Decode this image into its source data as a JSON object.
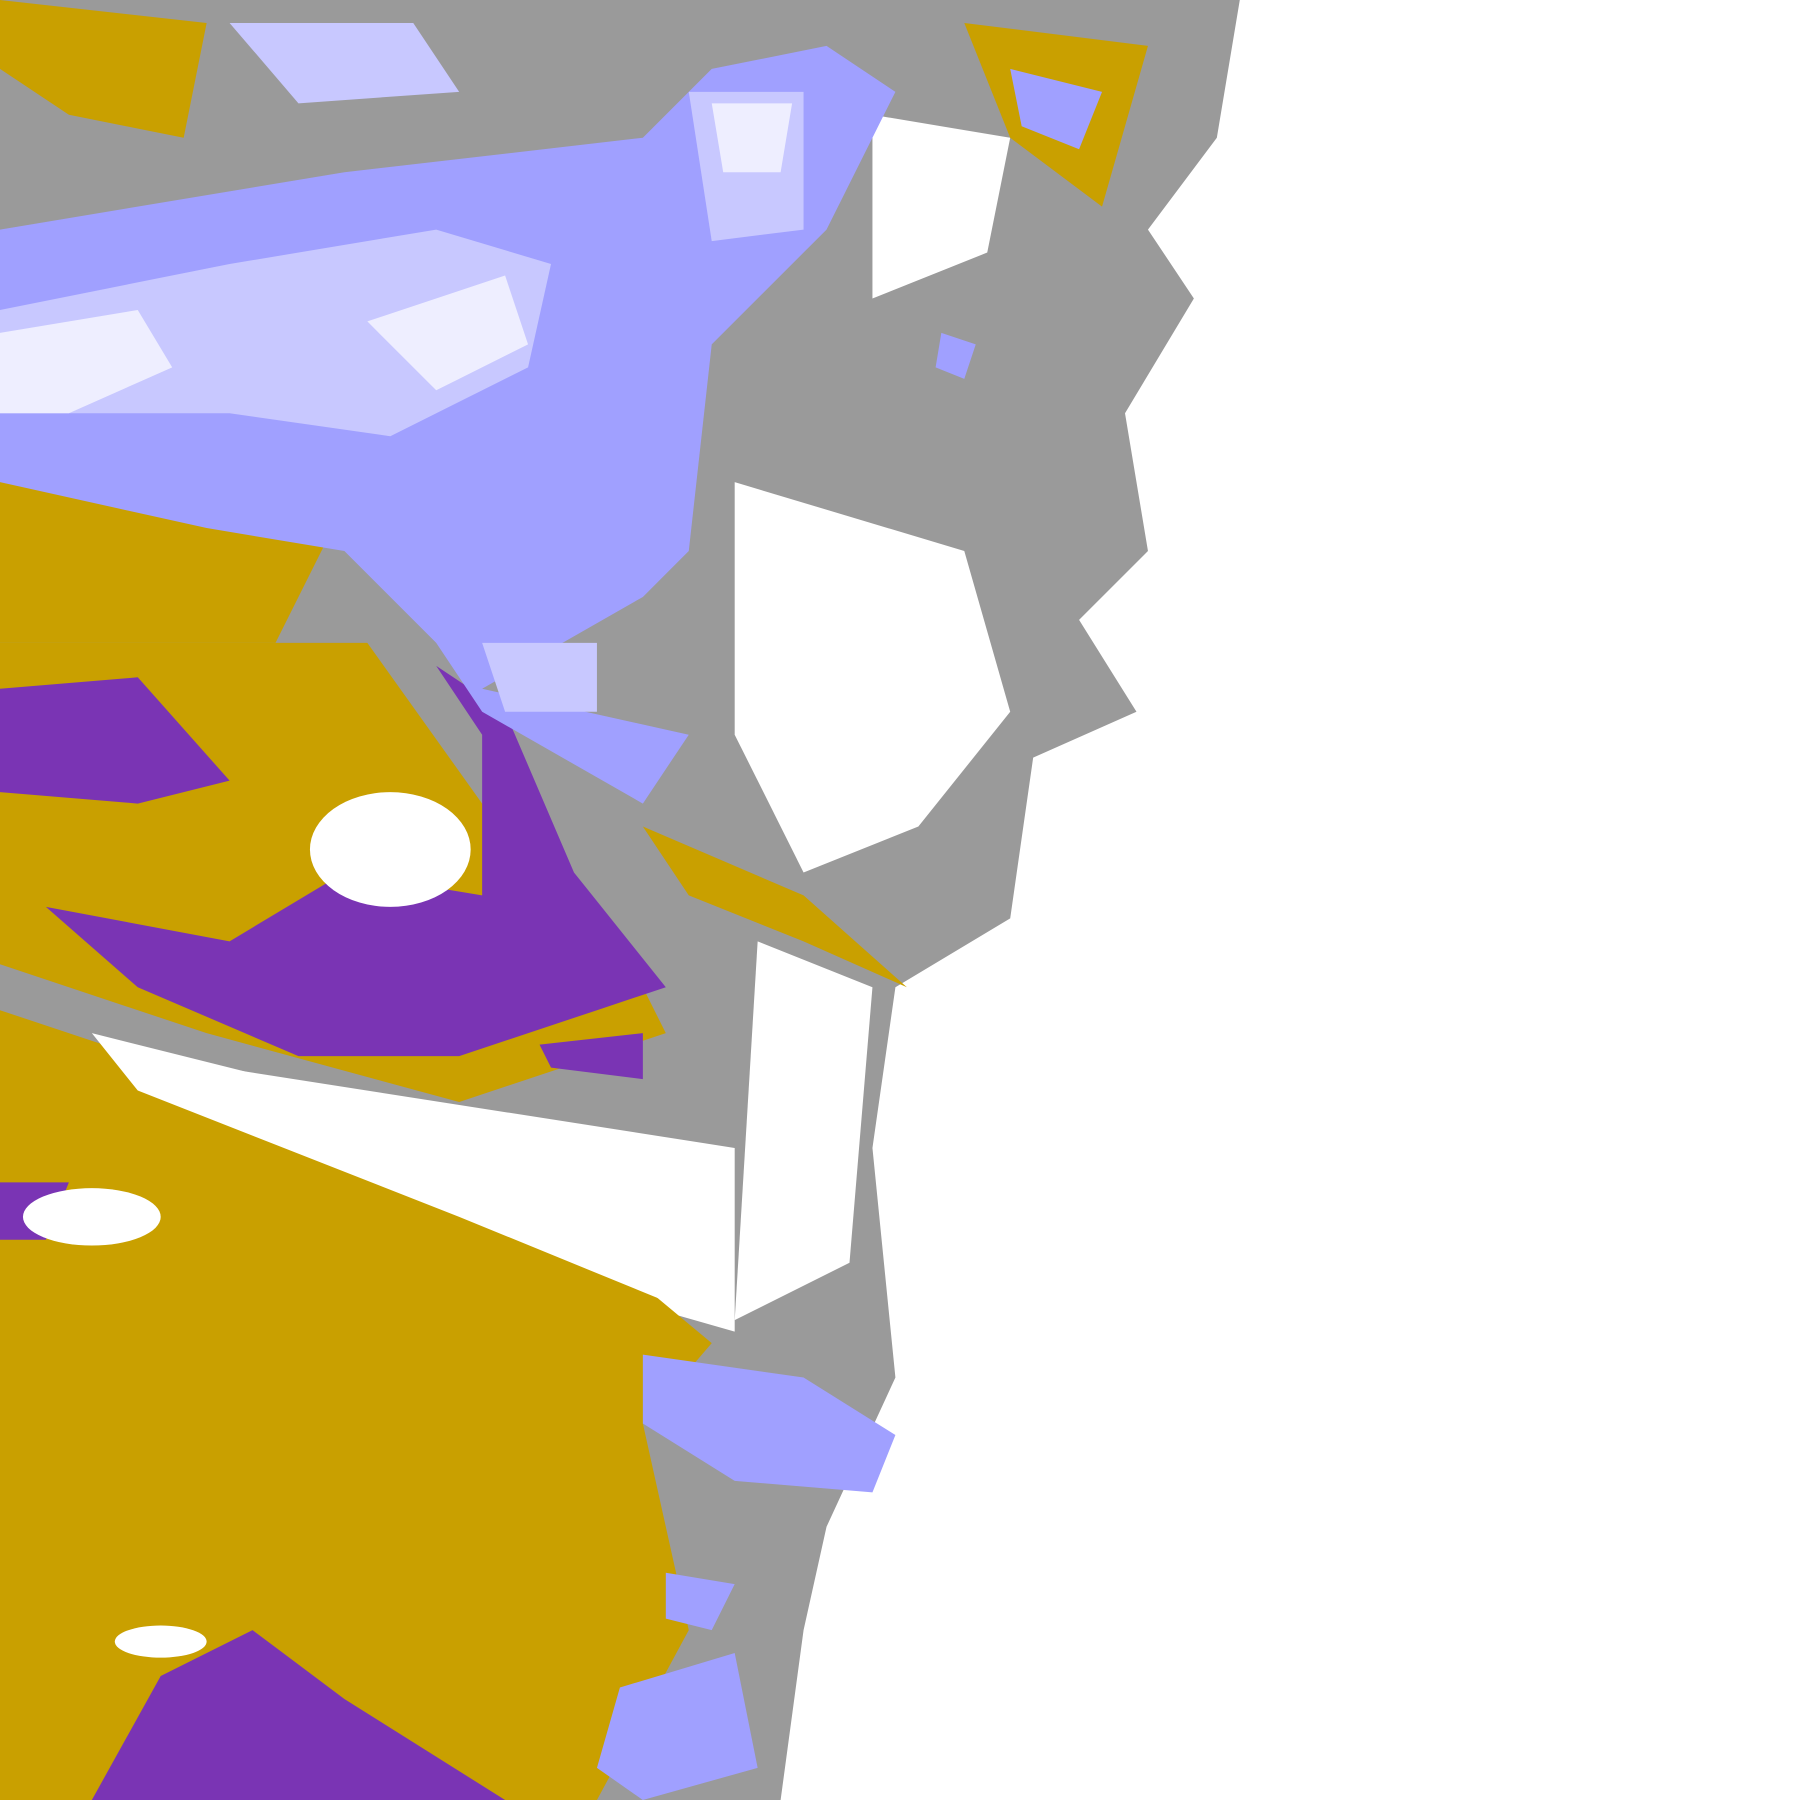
{
  "map": {
    "background": "#ffffff",
    "palette": {
      "gold": "#c9a000",
      "purple": "#7a34b4",
      "magenta": "#c040d0",
      "gray": "#9a9a9a",
      "light_gray": "#b8b8b8",
      "blue": "#a0a0ff",
      "lavender": "#c8c8ff",
      "pale": "#eeeeff"
    }
  }
}
